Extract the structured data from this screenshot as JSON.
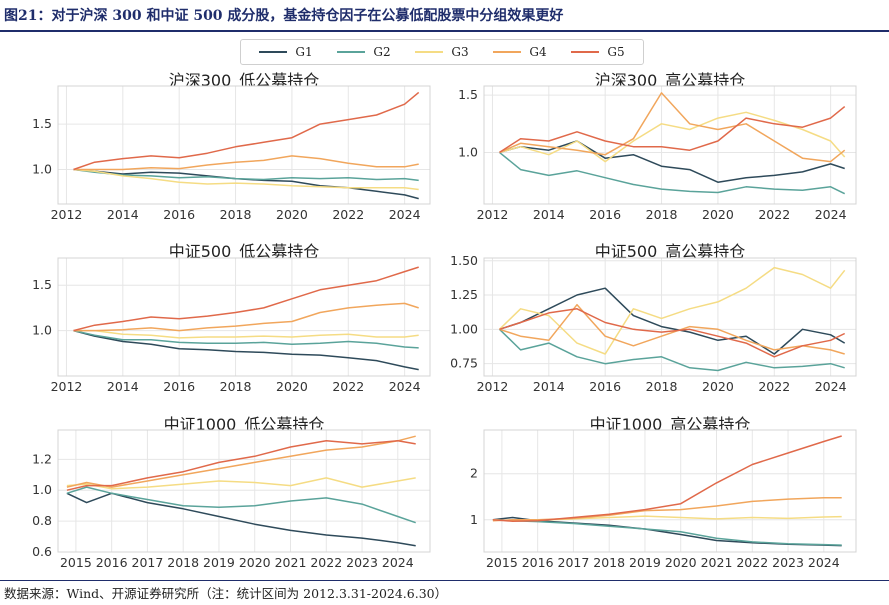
{
  "figure": {
    "title": "图21：对于沪深 300 和中证 500 成分股，基金持仓因子在公募低配股票中分组效果更好",
    "source": "数据来源：Wind、开源证券研究所（注：统计区间为 2012.3.31-2024.6.30）"
  },
  "legend": [
    {
      "name": "G1",
      "color": "#2e4a5a"
    },
    {
      "name": "G2",
      "color": "#5aa39a"
    },
    {
      "name": "G3",
      "color": "#f5dc84"
    },
    {
      "name": "G4",
      "color": "#f1a65c"
    },
    {
      "name": "G5",
      "color": "#e0694a"
    }
  ],
  "chart_data": [
    {
      "type": "line",
      "title": "沪深300_低公募持仓",
      "xlim": [
        2011.7,
        2024.9
      ],
      "ylim": [
        0.62,
        1.92
      ],
      "xticks": [
        2012,
        2014,
        2016,
        2018,
        2020,
        2022,
        2024
      ],
      "yticks": [
        1.0,
        1.5
      ],
      "ytick_labels": [
        "1.0",
        "1.5"
      ],
      "x": [
        2012.25,
        2013,
        2014,
        2015,
        2016,
        2017,
        2018,
        2019,
        2020,
        2021,
        2022,
        2023,
        2024,
        2024.5
      ],
      "series": [
        {
          "name": "G1",
          "values": [
            1.0,
            0.98,
            0.95,
            0.97,
            0.96,
            0.93,
            0.9,
            0.88,
            0.87,
            0.82,
            0.8,
            0.76,
            0.72,
            0.68
          ]
        },
        {
          "name": "G2",
          "values": [
            1.0,
            0.97,
            0.94,
            0.93,
            0.91,
            0.92,
            0.9,
            0.89,
            0.91,
            0.9,
            0.91,
            0.89,
            0.9,
            0.88
          ]
        },
        {
          "name": "G3",
          "values": [
            1.0,
            0.98,
            0.93,
            0.9,
            0.86,
            0.84,
            0.85,
            0.84,
            0.82,
            0.81,
            0.8,
            0.8,
            0.8,
            0.78
          ]
        },
        {
          "name": "G4",
          "values": [
            1.0,
            1.0,
            1.0,
            1.02,
            1.01,
            1.05,
            1.08,
            1.1,
            1.15,
            1.12,
            1.07,
            1.03,
            1.03,
            1.06
          ]
        },
        {
          "name": "G5",
          "values": [
            1.0,
            1.08,
            1.12,
            1.15,
            1.13,
            1.18,
            1.25,
            1.3,
            1.35,
            1.5,
            1.55,
            1.6,
            1.72,
            1.85
          ]
        }
      ]
    },
    {
      "type": "line",
      "title": "沪深300_高公募持仓",
      "xlim": [
        2011.7,
        2024.9
      ],
      "ylim": [
        0.55,
        1.58
      ],
      "xticks": [
        2012,
        2014,
        2016,
        2018,
        2020,
        2022,
        2024
      ],
      "yticks": [
        1.0,
        1.5
      ],
      "ytick_labels": [
        "1.0",
        "1.5"
      ],
      "x": [
        2012.25,
        2013,
        2014,
        2015,
        2016,
        2017,
        2018,
        2019,
        2020,
        2021,
        2022,
        2023,
        2024,
        2024.5
      ],
      "series": [
        {
          "name": "G1",
          "values": [
            1.0,
            1.05,
            1.02,
            1.1,
            0.95,
            0.98,
            0.88,
            0.85,
            0.74,
            0.78,
            0.8,
            0.83,
            0.9,
            0.86
          ]
        },
        {
          "name": "G2",
          "values": [
            1.0,
            0.85,
            0.8,
            0.84,
            0.78,
            0.72,
            0.68,
            0.66,
            0.65,
            0.7,
            0.68,
            0.67,
            0.7,
            0.64
          ]
        },
        {
          "name": "G3",
          "values": [
            1.0,
            1.05,
            0.98,
            1.1,
            0.92,
            1.1,
            1.25,
            1.2,
            1.3,
            1.35,
            1.28,
            1.2,
            1.1,
            0.96
          ]
        },
        {
          "name": "G4",
          "values": [
            1.0,
            1.08,
            1.05,
            1.02,
            0.98,
            1.12,
            1.52,
            1.25,
            1.2,
            1.25,
            1.1,
            0.95,
            0.92,
            1.02
          ]
        },
        {
          "name": "G5",
          "values": [
            1.0,
            1.12,
            1.1,
            1.18,
            1.1,
            1.05,
            1.05,
            1.02,
            1.1,
            1.3,
            1.25,
            1.22,
            1.3,
            1.4
          ]
        }
      ]
    },
    {
      "type": "line",
      "title": "中证500_低公募持仓",
      "xlim": [
        2011.7,
        2024.9
      ],
      "ylim": [
        0.5,
        1.8
      ],
      "xticks": [
        2012,
        2014,
        2016,
        2018,
        2020,
        2022,
        2024
      ],
      "yticks": [
        1.0,
        1.5
      ],
      "ytick_labels": [
        "1.0",
        "1.5"
      ],
      "x": [
        2012.25,
        2013,
        2014,
        2015,
        2016,
        2017,
        2018,
        2019,
        2020,
        2021,
        2022,
        2023,
        2024,
        2024.5
      ],
      "series": [
        {
          "name": "G1",
          "values": [
            1.0,
            0.94,
            0.88,
            0.85,
            0.8,
            0.79,
            0.77,
            0.76,
            0.74,
            0.73,
            0.7,
            0.67,
            0.6,
            0.57
          ]
        },
        {
          "name": "G2",
          "values": [
            1.0,
            0.95,
            0.9,
            0.9,
            0.87,
            0.86,
            0.86,
            0.87,
            0.85,
            0.86,
            0.88,
            0.86,
            0.82,
            0.81
          ]
        },
        {
          "name": "G3",
          "values": [
            1.0,
            1.0,
            0.96,
            0.95,
            0.92,
            0.93,
            0.93,
            0.94,
            0.93,
            0.95,
            0.96,
            0.93,
            0.93,
            0.95
          ]
        },
        {
          "name": "G4",
          "values": [
            1.0,
            1.0,
            1.01,
            1.03,
            1.0,
            1.03,
            1.05,
            1.08,
            1.1,
            1.2,
            1.25,
            1.28,
            1.3,
            1.25
          ]
        },
        {
          "name": "G5",
          "values": [
            1.0,
            1.06,
            1.1,
            1.15,
            1.13,
            1.16,
            1.2,
            1.25,
            1.35,
            1.45,
            1.5,
            1.55,
            1.65,
            1.7
          ]
        }
      ]
    },
    {
      "type": "line",
      "title": "中证500_高公募持仓",
      "xlim": [
        2011.7,
        2024.9
      ],
      "ylim": [
        0.66,
        1.52
      ],
      "xticks": [
        2012,
        2014,
        2016,
        2018,
        2020,
        2022,
        2024
      ],
      "yticks": [
        0.75,
        1.0,
        1.25,
        1.5
      ],
      "ytick_labels": [
        "0.75",
        "1.00",
        "1.25",
        "1.50"
      ],
      "x": [
        2012.25,
        2013,
        2014,
        2015,
        2016,
        2017,
        2018,
        2019,
        2020,
        2021,
        2022,
        2023,
        2024,
        2024.5
      ],
      "series": [
        {
          "name": "G1",
          "values": [
            1.0,
            1.05,
            1.15,
            1.25,
            1.3,
            1.1,
            1.02,
            0.98,
            0.92,
            0.95,
            0.82,
            1.0,
            0.96,
            0.9
          ]
        },
        {
          "name": "G2",
          "values": [
            1.0,
            0.85,
            0.9,
            0.8,
            0.75,
            0.78,
            0.8,
            0.72,
            0.7,
            0.76,
            0.72,
            0.73,
            0.75,
            0.72
          ]
        },
        {
          "name": "G3",
          "values": [
            1.0,
            1.15,
            1.1,
            0.9,
            0.82,
            1.15,
            1.08,
            1.15,
            1.2,
            1.3,
            1.45,
            1.4,
            1.3,
            1.43
          ]
        },
        {
          "name": "G4",
          "values": [
            1.0,
            0.95,
            0.92,
            1.18,
            0.95,
            0.88,
            0.95,
            1.02,
            1.0,
            0.92,
            0.85,
            0.88,
            0.85,
            0.82
          ]
        },
        {
          "name": "G5",
          "values": [
            1.0,
            1.05,
            1.12,
            1.15,
            1.05,
            1.0,
            0.98,
            1.0,
            0.95,
            0.9,
            0.8,
            0.88,
            0.92,
            0.97
          ]
        }
      ]
    },
    {
      "type": "line",
      "title": "中证1000_低公募持仓",
      "xlim": [
        2014.5,
        2024.9
      ],
      "ylim": [
        0.6,
        1.39
      ],
      "xticks": [
        2015,
        2016,
        2017,
        2018,
        2019,
        2020,
        2021,
        2022,
        2023,
        2024
      ],
      "yticks": [
        0.6,
        0.8,
        1.0,
        1.2
      ],
      "ytick_labels": [
        "0.6",
        "0.8",
        "1.0",
        "1.2"
      ],
      "x": [
        2014.75,
        2015.3,
        2016,
        2017,
        2018,
        2019,
        2020,
        2021,
        2022,
        2023,
        2024,
        2024.5
      ],
      "series": [
        {
          "name": "G1",
          "values": [
            0.98,
            0.92,
            0.98,
            0.92,
            0.88,
            0.83,
            0.78,
            0.74,
            0.71,
            0.69,
            0.66,
            0.64
          ]
        },
        {
          "name": "G2",
          "values": [
            0.98,
            1.02,
            0.98,
            0.94,
            0.9,
            0.89,
            0.9,
            0.93,
            0.95,
            0.91,
            0.83,
            0.79
          ]
        },
        {
          "name": "G3",
          "values": [
            1.03,
            1.04,
            1.01,
            1.02,
            1.04,
            1.06,
            1.05,
            1.03,
            1.08,
            1.02,
            1.06,
            1.08
          ]
        },
        {
          "name": "G4",
          "values": [
            1.02,
            1.05,
            1.02,
            1.06,
            1.1,
            1.14,
            1.18,
            1.22,
            1.26,
            1.28,
            1.32,
            1.35
          ]
        },
        {
          "name": "G5",
          "values": [
            1.0,
            1.03,
            1.03,
            1.08,
            1.12,
            1.18,
            1.22,
            1.28,
            1.32,
            1.3,
            1.32,
            1.3
          ]
        }
      ]
    },
    {
      "type": "line",
      "title": "中证1000_高公募持仓",
      "xlim": [
        2014.5,
        2024.9
      ],
      "ylim": [
        0.3,
        2.95
      ],
      "xticks": [
        2015,
        2016,
        2017,
        2018,
        2019,
        2020,
        2021,
        2022,
        2023,
        2024
      ],
      "yticks": [
        1,
        2
      ],
      "ytick_labels": [
        "1",
        "2"
      ],
      "x": [
        2014.75,
        2015.3,
        2016,
        2017,
        2018,
        2019,
        2020,
        2021,
        2022,
        2023,
        2024,
        2024.5
      ],
      "series": [
        {
          "name": "G1",
          "values": [
            1.0,
            1.05,
            0.98,
            0.93,
            0.88,
            0.8,
            0.68,
            0.55,
            0.5,
            0.47,
            0.45,
            0.44
          ]
        },
        {
          "name": "G2",
          "values": [
            1.0,
            0.98,
            0.96,
            0.92,
            0.86,
            0.8,
            0.74,
            0.6,
            0.52,
            0.48,
            0.46,
            0.45
          ]
        },
        {
          "name": "G3",
          "values": [
            1.0,
            0.98,
            0.99,
            1.02,
            1.05,
            1.08,
            1.05,
            1.02,
            1.05,
            1.03,
            1.06,
            1.07
          ]
        },
        {
          "name": "G4",
          "values": [
            0.98,
            1.0,
            1.0,
            1.03,
            1.1,
            1.2,
            1.22,
            1.3,
            1.4,
            1.45,
            1.48,
            1.48
          ]
        },
        {
          "name": "G5",
          "values": [
            1.0,
            0.97,
            0.98,
            1.05,
            1.12,
            1.22,
            1.35,
            1.8,
            2.2,
            2.45,
            2.7,
            2.82
          ]
        }
      ]
    }
  ]
}
